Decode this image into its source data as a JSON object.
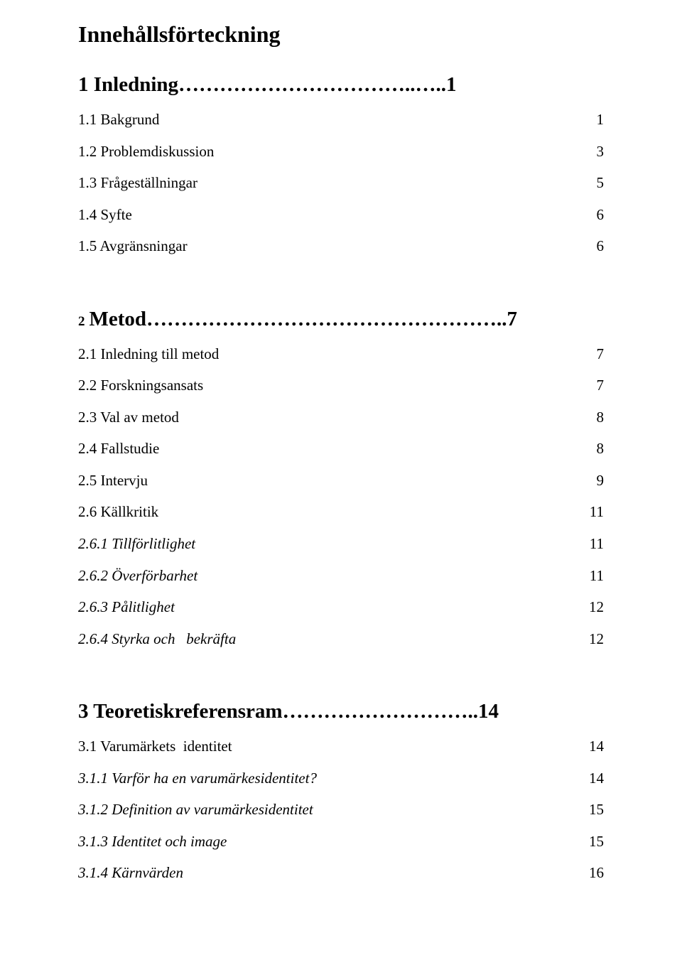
{
  "title": "Innehållsförteckning",
  "chapters": [
    {
      "heading_label": "1 Inledning……………………………..…..1",
      "heading_page": "",
      "prefix_small": "",
      "items": [
        {
          "label": "1.1 Bakgrund",
          "page": "1",
          "italic": false
        },
        {
          "label": "1.2 Problemdiskussion",
          "page": "3",
          "italic": false
        },
        {
          "label": "1.3 Frågeställningar",
          "page": "5",
          "italic": false
        },
        {
          "label": "1.4 Syfte",
          "page": "6",
          "italic": false
        },
        {
          "label": "1.5 Avgränsningar",
          "page": "6",
          "italic": false
        }
      ]
    },
    {
      "heading_label": "Metod……………………………………………..7",
      "heading_page": "",
      "prefix_small": "2",
      "items": [
        {
          "label": "2.1 Inledning till metod",
          "page": "7",
          "italic": false
        },
        {
          "label": "2.2 Forskningsansats",
          "page": "7",
          "italic": false
        },
        {
          "label": "2.3 Val av metod",
          "page": "8",
          "italic": false
        },
        {
          "label": "2.4 Fallstudie",
          "page": "8",
          "italic": false
        },
        {
          "label": "2.5 Intervju",
          "page": "9",
          "italic": false
        },
        {
          "label": "2.6 Källkritik",
          "page": "11",
          "italic": false
        },
        {
          "label": "2.6.1 Tillförlitlighet",
          "page": "11",
          "italic": true
        },
        {
          "label": "2.6.2 Överförbarhet",
          "page": "11",
          "italic": true
        },
        {
          "label": "2.6.3 Pålitlighet",
          "page": "12",
          "italic": true
        },
        {
          "label": "2.6.4 Styrka och   bekräfta",
          "page": "12",
          "italic": true
        }
      ]
    },
    {
      "heading_label": "3 Teoretiskreferensram………………………..14",
      "heading_page": "",
      "prefix_small": "",
      "items": [
        {
          "label": "3.1 Varumärkets  identitet",
          "page": "14",
          "italic": false
        },
        {
          "label": "3.1.1 Varför ha en varumärkesidentitet?",
          "page": "14",
          "italic": true
        },
        {
          "label": "3.1.2 Definition av varumärkesidentitet",
          "page": "15",
          "italic": true
        },
        {
          "label": "3.1.3 Identitet och image",
          "page": "15",
          "italic": true
        },
        {
          "label": "3.1.4 Kärnvärden",
          "page": "16",
          "italic": true
        }
      ]
    }
  ]
}
